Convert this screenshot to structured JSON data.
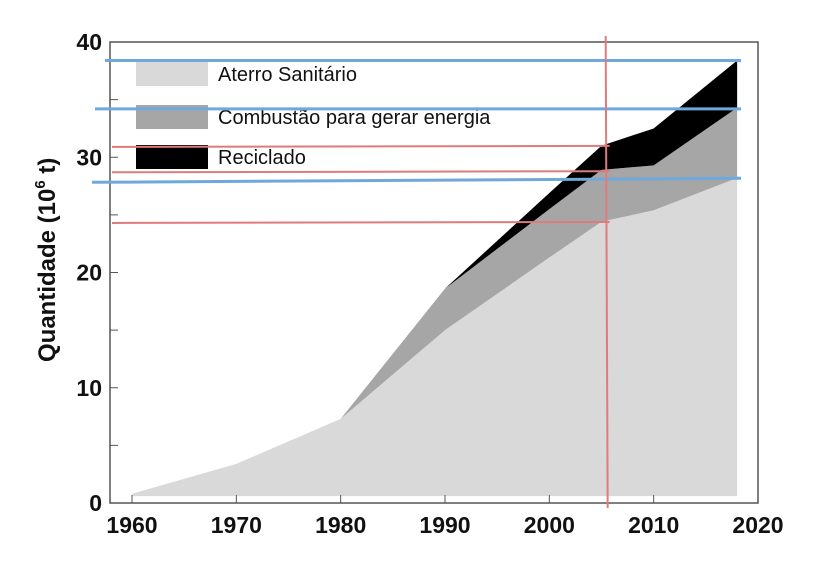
{
  "chart_data": {
    "type": "area",
    "stacked": true,
    "title": "",
    "xlabel": "",
    "ylabel": "Quantidade (10",
    "ylabel_sup": "6",
    "ylabel_unit": " t)",
    "xlim": [
      1958,
      2020
    ],
    "ylim": [
      0,
      40
    ],
    "xticks": [
      "1960",
      "1970",
      "1980",
      "1990",
      "2000",
      "2010",
      "2020"
    ],
    "yticks": [
      "0",
      "10",
      "20",
      "30",
      "40"
    ],
    "x": [
      1960,
      1970,
      1980,
      1990,
      2000,
      2005,
      2010,
      2018
    ],
    "series": [
      {
        "name": "Aterro Sanitário",
        "color": "#d9d9d9",
        "values": [
          0.8,
          3.4,
          7.3,
          15.0,
          21.3,
          24.4,
          25.4,
          28.2
        ]
      },
      {
        "name": "Combustão para gerar energia",
        "color": "#a6a6a6",
        "values": [
          0,
          0,
          0,
          3.6,
          4.2,
          4.5,
          3.9,
          6.1
        ]
      },
      {
        "name": "Reciclado",
        "color": "#000000",
        "values": [
          0,
          0,
          0,
          0,
          1.4,
          2.1,
          3.2,
          4.1
        ]
      }
    ],
    "legend_position": "top-left",
    "grid": false,
    "annotations": {
      "blue_horizontal_y": [
        38.4,
        34.2,
        28.0
      ],
      "red_horizontal_y": [
        30.9,
        28.7,
        24.3
      ],
      "red_vertical_x": 2005.4,
      "blue_color": "#6fa8dc",
      "red_color": "#e07b7b"
    }
  }
}
